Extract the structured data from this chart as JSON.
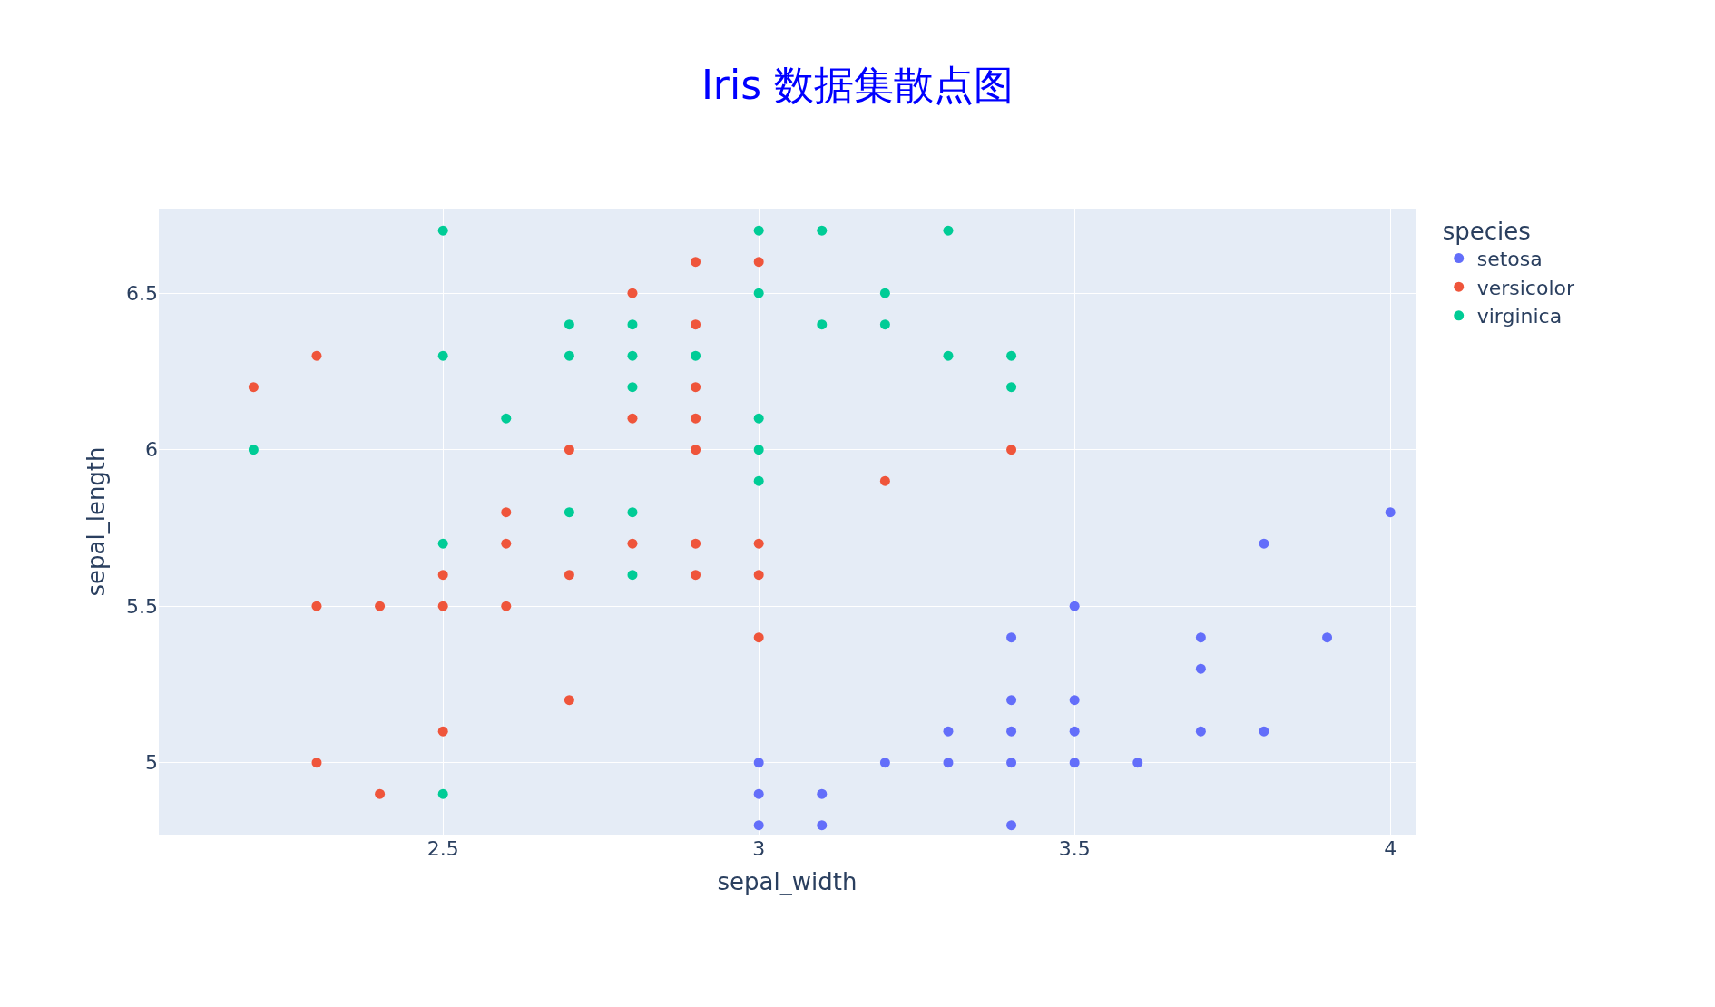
{
  "chart_data": {
    "type": "scatter",
    "title": "Iris 数据集散点图",
    "xlabel": "sepal_width",
    "ylabel": "sepal_length",
    "legend_title": "species",
    "xlim": [
      2.05,
      4.04
    ],
    "ylim": [
      4.77,
      6.77
    ],
    "xticks": [
      2.5,
      3,
      3.5,
      4
    ],
    "yticks": [
      5,
      5.5,
      6,
      6.5
    ],
    "grid": true,
    "legend": "top right",
    "marker": "circle",
    "series": [
      {
        "name": "setosa",
        "color": "#636efa",
        "x": [
          3.0,
          3.0,
          3.0,
          3.1,
          3.1,
          3.2,
          3.3,
          3.3,
          3.4,
          3.4,
          3.4,
          3.4,
          3.4,
          3.5,
          3.5,
          3.5,
          3.5,
          3.6,
          3.7,
          3.7,
          3.7,
          3.8,
          3.8,
          3.9,
          4.0
        ],
        "values": [
          5.0,
          4.9,
          4.8,
          4.9,
          4.8,
          5.0,
          5.1,
          5.0,
          5.4,
          5.2,
          5.1,
          5.0,
          4.8,
          5.5,
          5.2,
          5.1,
          5.0,
          5.0,
          5.4,
          5.3,
          5.1,
          5.7,
          5.1,
          5.4,
          5.8
        ]
      },
      {
        "name": "versicolor",
        "color": "#ef553b",
        "x": [
          2.2,
          2.3,
          2.3,
          2.3,
          2.4,
          2.4,
          2.5,
          2.5,
          2.5,
          2.6,
          2.6,
          2.6,
          2.7,
          2.7,
          2.7,
          2.8,
          2.8,
          2.8,
          2.9,
          2.9,
          2.9,
          2.9,
          2.9,
          2.9,
          2.9,
          3.0,
          3.0,
          3.0,
          3.0,
          3.2,
          3.4
        ],
        "values": [
          6.2,
          6.3,
          5.5,
          5.0,
          5.5,
          4.9,
          5.6,
          5.5,
          5.1,
          5.8,
          5.7,
          5.5,
          6.0,
          5.6,
          5.2,
          6.5,
          6.1,
          5.7,
          6.6,
          6.4,
          6.2,
          6.1,
          6.0,
          5.7,
          5.6,
          6.6,
          5.7,
          5.6,
          5.4,
          5.9,
          6.0
        ]
      },
      {
        "name": "virginica",
        "color": "#00cc96",
        "x": [
          2.2,
          2.5,
          2.5,
          2.5,
          2.5,
          2.6,
          2.7,
          2.7,
          2.7,
          2.8,
          2.8,
          2.8,
          2.8,
          2.8,
          2.9,
          3.0,
          3.0,
          3.0,
          3.0,
          3.0,
          3.1,
          3.1,
          3.2,
          3.2,
          3.3,
          3.3,
          3.4,
          3.4
        ],
        "values": [
          6.0,
          6.7,
          6.3,
          5.7,
          4.9,
          6.1,
          6.4,
          6.3,
          5.8,
          6.4,
          6.3,
          6.2,
          5.8,
          5.6,
          6.3,
          6.7,
          6.5,
          6.1,
          6.0,
          5.9,
          6.7,
          6.4,
          6.5,
          6.4,
          6.7,
          6.3,
          6.3,
          6.2
        ]
      }
    ]
  }
}
